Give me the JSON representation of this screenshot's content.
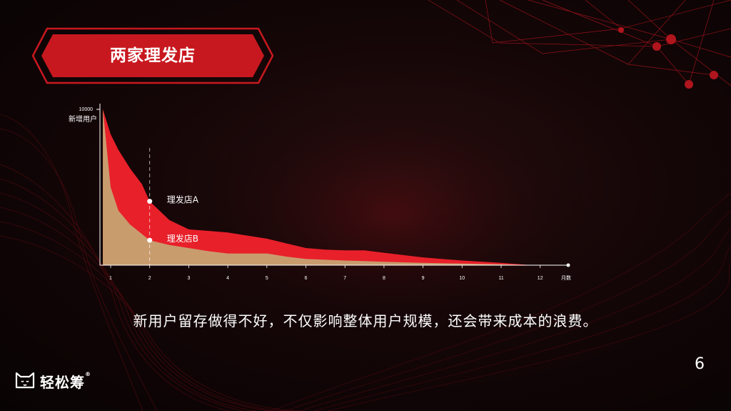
{
  "slide": {
    "title": "两家理发店",
    "caption": "新用户留存做得不好，不仅影响整体用户规模，还会带来成本的浪费。",
    "page_number": "6",
    "logo_text": "轻松筹",
    "logo_mark": "®"
  },
  "colors": {
    "accent": "#e0202a",
    "series_a": "#e8202a",
    "series_b": "#c99c6e",
    "banner": "#c8181f"
  },
  "chart_data": {
    "type": "area",
    "ylabel": "新增用户",
    "ymax_label": "10000",
    "ylim": [
      0,
      10000
    ],
    "xlabel": "月数",
    "xlim": [
      0.8,
      13.0
    ],
    "x_ticks": [
      1,
      2,
      3,
      4,
      5,
      6,
      7,
      8,
      9,
      10,
      11,
      12
    ],
    "marker_x": 2,
    "series": [
      {
        "name": "理发店A",
        "x": [
          0.8,
          1.0,
          1.2,
          1.5,
          1.8,
          2.0,
          2.5,
          3.0,
          3.5,
          4.0,
          4.5,
          5.0,
          5.5,
          6.0,
          6.5,
          7.0,
          7.5,
          8.0,
          9.0,
          10.0,
          11.0,
          11.8
        ],
        "values": [
          10000,
          8400,
          7400,
          6200,
          5200,
          4100,
          2900,
          2300,
          2200,
          2100,
          1900,
          1700,
          1400,
          1100,
          1000,
          950,
          950,
          800,
          500,
          300,
          150,
          0
        ]
      },
      {
        "name": "理发店B",
        "x": [
          0.8,
          1.0,
          1.2,
          1.5,
          1.8,
          2.0,
          2.5,
          3.0,
          3.5,
          4.0,
          4.5,
          5.0,
          5.5,
          6.0,
          7.0,
          8.0,
          9.0,
          10.0,
          11.0,
          11.8
        ],
        "values": [
          10000,
          5000,
          3500,
          2600,
          2000,
          1600,
          1300,
          1100,
          900,
          750,
          750,
          750,
          550,
          400,
          300,
          220,
          150,
          100,
          50,
          0
        ]
      }
    ],
    "annotations": [
      {
        "text": "理发店A",
        "x": 2,
        "y": 4100
      },
      {
        "text": "理发店B",
        "x": 2,
        "y": 1600
      }
    ]
  }
}
